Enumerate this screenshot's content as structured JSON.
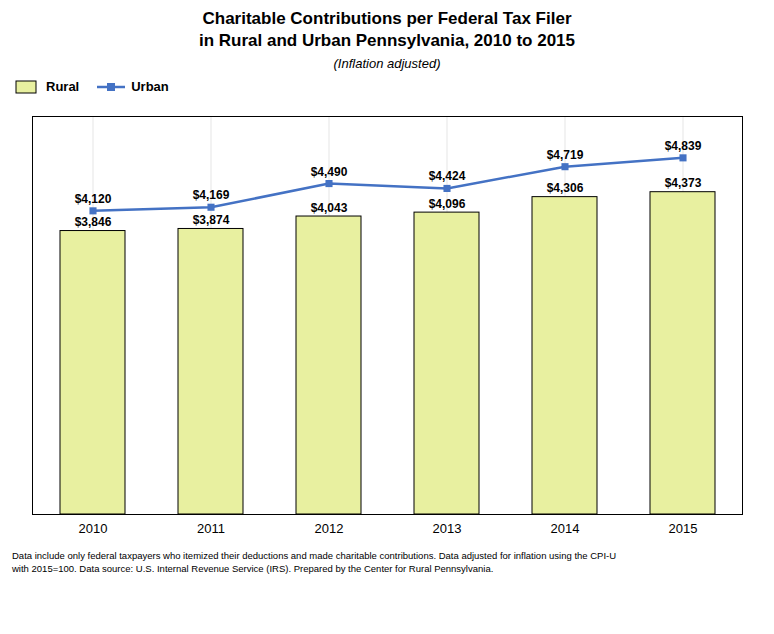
{
  "chart_data": {
    "type": "bar",
    "title": "Charitable Contributions per Federal Tax Filer\nin Rural and Urban Pennsylvania, 2010 to 2015",
    "subtitle": "(Inflation adjusted)",
    "footer": [
      "Data include only federal taxpayers who itemized their deductions and made charitable contributions.  Data adjusted for inflation using the CPI-U",
      "with 2015=100. Data source: U.S. Internal Revenue Service (IRS). Prepared by the Center for Rural Pennsylvania."
    ],
    "categories": [
      "2010",
      "2011",
      "2012",
      "2013",
      "2014",
      "2015"
    ],
    "series": [
      {
        "name": "Rural",
        "type": "bar",
        "color": "#e8f0a0",
        "values": [
          3846,
          3874,
          4043,
          4096,
          4306,
          4373
        ],
        "value_labels": [
          "$3,846",
          "$3,874",
          "$4,043",
          "$4,096",
          "$4,306",
          "$4,373"
        ]
      },
      {
        "name": "Urban",
        "type": "line",
        "color": "#4472c4",
        "marker": "square",
        "values": [
          4120,
          4169,
          4490,
          4424,
          4719,
          4839
        ],
        "value_labels": [
          "$4,120",
          "$4,169",
          "$4,490",
          "$4,424",
          "$4,719",
          "$4,839"
        ]
      }
    ],
    "ylim": [
      0,
      5400
    ],
    "yticks": [],
    "grid": true,
    "legend": "upper left",
    "data_labels": true,
    "tick_labels": "x"
  }
}
